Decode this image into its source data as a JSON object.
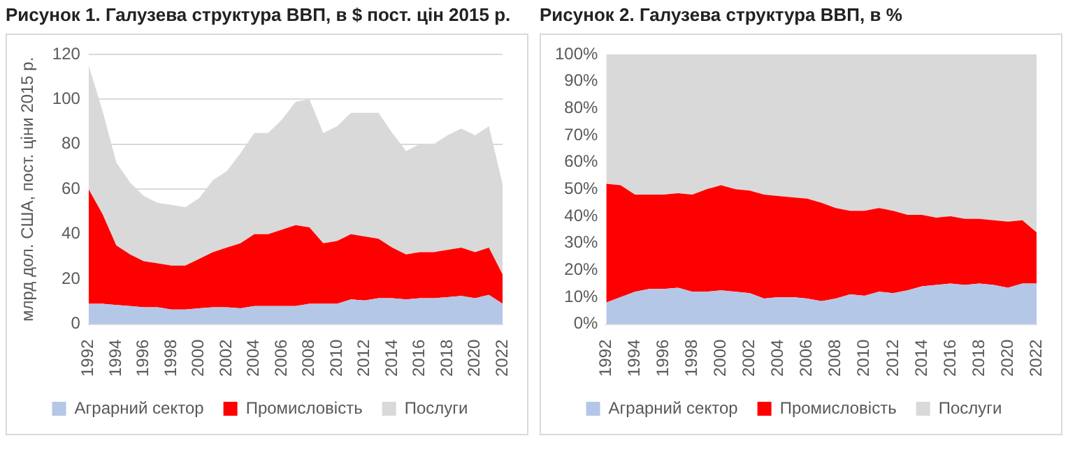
{
  "chart_data": [
    {
      "type": "area",
      "title": "Рисунок 1. Галузева структура ВВП, в $ пост. цін 2015 р.",
      "ylabel": "млрд дол. США, пост. ціни 2015 р.",
      "stacked": true,
      "grid": "y",
      "legend": "bottom",
      "categories": [
        "1992",
        null,
        "1994",
        null,
        "1996",
        null,
        "1998",
        null,
        "2000",
        null,
        "2002",
        null,
        "2004",
        null,
        "2006",
        null,
        "2008",
        null,
        "2010",
        null,
        "2012",
        null,
        "2014",
        null,
        "2016",
        null,
        "2018",
        null,
        "2020",
        null,
        "2022"
      ],
      "ylim": [
        0,
        120
      ],
      "yticks": [
        0,
        20,
        40,
        60,
        80,
        100,
        120
      ],
      "series": [
        {
          "name": "Аграрний сектор",
          "color": "#b4c7e7",
          "values": [
            9,
            9,
            8.5,
            8,
            7.5,
            7.5,
            6.5,
            6.5,
            7,
            7.5,
            7.5,
            7,
            8,
            8,
            8,
            8,
            9,
            9,
            9,
            11,
            10.5,
            11.5,
            11.5,
            11,
            11.5,
            11.5,
            12,
            12.5,
            11.5,
            13,
            9
          ]
        },
        {
          "name": "Промисловість",
          "color": "#ff0000",
          "values": [
            51,
            40,
            26.5,
            23,
            20.5,
            19.5,
            19.5,
            19.5,
            22,
            24.5,
            26.5,
            29,
            32,
            32,
            34,
            36,
            34,
            27,
            28,
            29,
            28.5,
            26.5,
            22.5,
            20,
            20.5,
            20.5,
            21,
            21.5,
            20.5,
            21,
            13
          ]
        },
        {
          "name": "Послуги",
          "color": "#d9d9d9",
          "values": [
            55,
            46,
            37,
            32,
            29,
            27,
            27,
            26,
            27,
            32,
            34,
            40,
            45,
            45,
            49,
            55,
            57,
            49,
            51,
            54,
            55,
            56,
            51,
            46,
            48,
            48,
            51,
            53,
            52,
            54,
            40
          ]
        }
      ]
    },
    {
      "type": "area",
      "title": "Рисунок 2. Галузева структура ВВП, в %",
      "stacked": true,
      "legend": "bottom",
      "categories": [
        "1992",
        null,
        "1994",
        null,
        "1996",
        null,
        "1998",
        null,
        "2000",
        null,
        "2002",
        null,
        "2004",
        null,
        "2006",
        null,
        "2008",
        null,
        "2010",
        null,
        "2012",
        null,
        "2014",
        null,
        "2016",
        null,
        "2018",
        null,
        "2020",
        null,
        "2022"
      ],
      "ylim": [
        0,
        100
      ],
      "yticks": [
        {
          "value": 0,
          "label": "0%"
        },
        {
          "value": 10,
          "label": "10%"
        },
        {
          "value": 20,
          "label": "20%"
        },
        {
          "value": 30,
          "label": "30%"
        },
        {
          "value": 40,
          "label": "40%"
        },
        {
          "value": 50,
          "label": "50%"
        },
        {
          "value": 60,
          "label": "60%"
        },
        {
          "value": 70,
          "label": "70%"
        },
        {
          "value": 80,
          "label": "80%"
        },
        {
          "value": 90,
          "label": "90%"
        },
        {
          "value": 100,
          "label": "100%"
        }
      ],
      "series": [
        {
          "name": "Аграрний сектор",
          "color": "#b4c7e7",
          "values": [
            8,
            10,
            12,
            13,
            13,
            13.5,
            12,
            12,
            12.5,
            12,
            11.5,
            9.5,
            10,
            10,
            9.5,
            8.5,
            9.5,
            11,
            10.5,
            12,
            11.5,
            12.5,
            14,
            14.5,
            15,
            14.5,
            15,
            14.5,
            13.5,
            15,
            15
          ]
        },
        {
          "name": "Промисловість",
          "color": "#ff0000",
          "values": [
            44,
            41.5,
            36,
            35,
            35,
            35,
            36,
            38,
            39,
            38,
            38,
            38.5,
            37.5,
            37,
            37,
            36.5,
            33.5,
            31,
            31.5,
            31,
            30.5,
            28,
            26.5,
            25,
            25,
            24.5,
            24,
            24,
            24.5,
            23.5,
            19
          ]
        },
        {
          "name": "Послуги",
          "color": "#d9d9d9",
          "values": [
            48,
            48.5,
            52,
            52,
            52,
            51.5,
            52,
            50,
            48.5,
            50,
            50.5,
            52,
            52.5,
            53,
            53.5,
            55,
            57,
            58,
            58,
            57,
            58,
            59.5,
            59.5,
            60.5,
            60,
            61,
            61,
            61.5,
            62,
            61.5,
            66
          ]
        }
      ]
    }
  ]
}
